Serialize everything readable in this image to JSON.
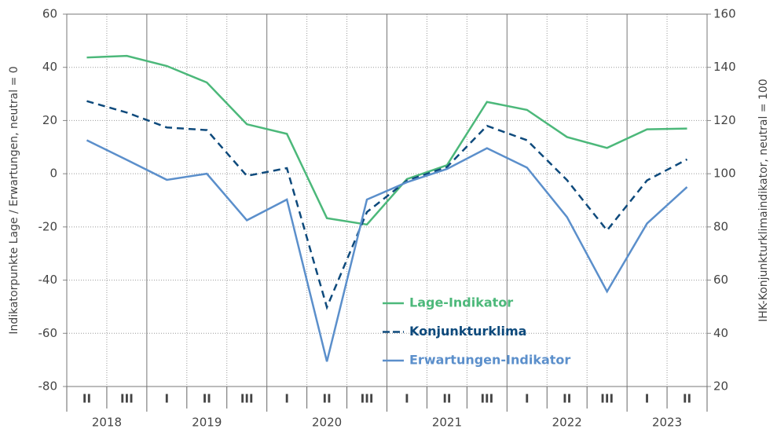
{
  "chart_data": {
    "type": "line",
    "y_axis_label": "Indikatorpunkte Lage / Erwartungen, neutral = 0",
    "y2_axis_label": "IHK-Konjunkturklimaindikator, neutral = 100",
    "categories": [
      "II",
      "III",
      "I",
      "II",
      "III",
      "I",
      "II",
      "III",
      "I",
      "II",
      "III",
      "I",
      "II",
      "III",
      "I",
      "II"
    ],
    "years": [
      "2018",
      "2019",
      "2020",
      "2021",
      "2022",
      "2023"
    ],
    "ylim": [
      -80,
      60
    ],
    "yticks": [
      -80,
      -60,
      -40,
      -20,
      0,
      20,
      40,
      60
    ],
    "y2lim": [
      20,
      160
    ],
    "y2ticks": [
      20,
      40,
      60,
      80,
      100,
      120,
      140,
      160
    ],
    "grid": true,
    "series": [
      {
        "name": "Lage-Indikator",
        "color": "#4cb87a",
        "dash": false,
        "values": [
          43.7,
          44.3,
          40.5,
          34.3,
          18.6,
          15,
          -16.7,
          -19.1,
          -2,
          3.2,
          27,
          24,
          13.8,
          9.7,
          16.7,
          17
        ]
      },
      {
        "name": "Konjunkturklima",
        "color": "#0e4a7c",
        "dash": true,
        "axis": "y2",
        "values": [
          127.3,
          123,
          117.4,
          116.4,
          99.2,
          102.1,
          49.8,
          85.6,
          97.4,
          102.5,
          118,
          112.6,
          97.6,
          78.7,
          97.5,
          105.4
        ]
      },
      {
        "name": "Erwartungen-Indikator",
        "color": "#5b8fcb",
        "dash": false,
        "values": [
          12.6,
          5.2,
          -2.3,
          0,
          -17.5,
          -9.7,
          -70.6,
          -9.7,
          -3.2,
          1.8,
          9.6,
          2.3,
          -16.3,
          -44.3,
          -18.7,
          -5
        ]
      }
    ]
  }
}
